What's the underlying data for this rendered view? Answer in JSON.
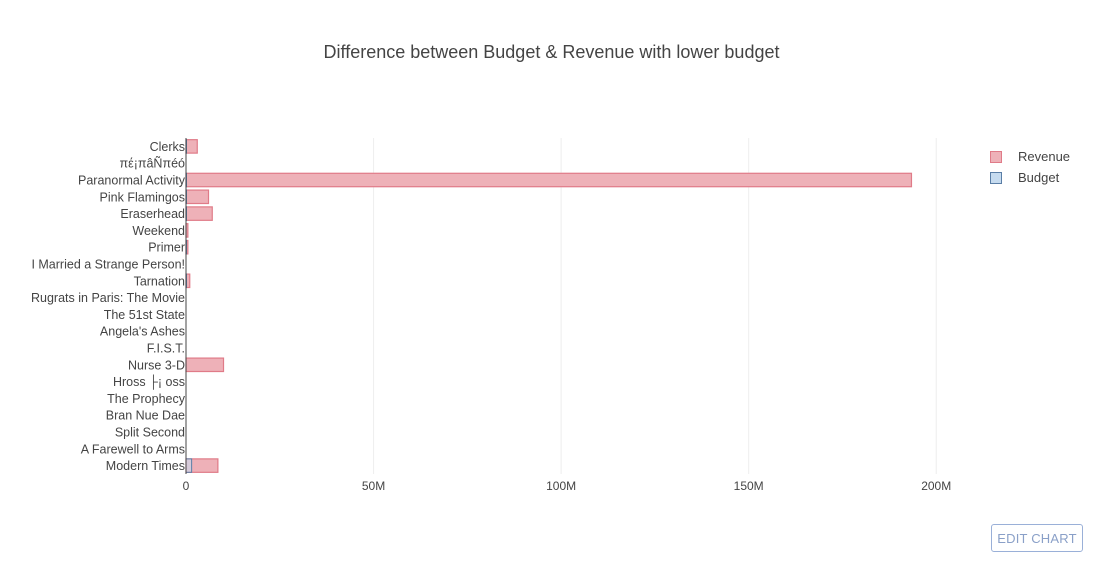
{
  "chart_data": {
    "type": "bar",
    "orientation": "horizontal",
    "title": "Difference between Budget & Revenue with lower budget",
    "categories": [
      "Clerks",
      "πέ¡πâÑπéó",
      "Paranormal Activity",
      "Pink Flamingos",
      "Eraserhead",
      "Weekend",
      "Primer",
      "I Married a Strange Person!",
      "Tarnation",
      "Rugrats in Paris: The Movie",
      "The 51st State",
      "Angela's Ashes",
      "F.I.S.T.",
      "Nurse 3-D",
      "Hross ├¡ oss",
      "The Prophecy",
      "Bran Nue Dae",
      "Split Second",
      "A Farewell to Arms",
      "Modern Times"
    ],
    "series": [
      {
        "name": "Revenue",
        "color": "#e8a0a8",
        "values": [
          3000000,
          0,
          193400000,
          6000000,
          7000000,
          500000,
          500000,
          0,
          1000000,
          0,
          0,
          0,
          0,
          10000000,
          0,
          0,
          0,
          0,
          0,
          8500000
        ]
      },
      {
        "name": "Budget",
        "color": "#b3cde3",
        "values": [
          27000,
          0,
          15000,
          12000,
          10000,
          0,
          7000,
          0,
          218,
          0,
          0,
          0,
          0,
          0,
          0,
          0,
          0,
          0,
          0,
          1500000
        ]
      }
    ],
    "xaxis": {
      "ticks": [
        0,
        50000000,
        100000000,
        150000000,
        200000000
      ],
      "tick_labels": [
        "0",
        "50M",
        "100M",
        "150M",
        "200M"
      ],
      "range": [
        0,
        217000000
      ]
    },
    "xlabel": "",
    "ylabel": "",
    "grid": true,
    "legend": {
      "placement": "top-right",
      "items": [
        "Revenue",
        "Budget"
      ]
    }
  },
  "ui": {
    "edit_button": "EDIT CHART"
  },
  "colors": {
    "revenue_fill": "#eeb1b8",
    "revenue_stroke": "#e07b88",
    "budget_fill": "#c6dbef",
    "budget_stroke": "#5a7ea6",
    "grid": "#eeeeee",
    "axis": "#444444"
  }
}
